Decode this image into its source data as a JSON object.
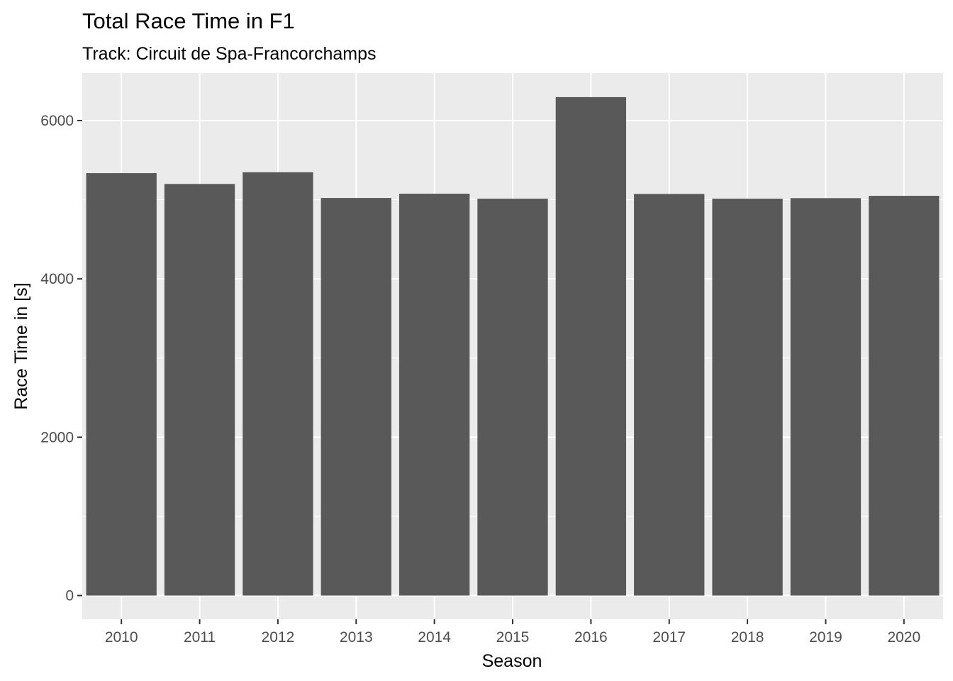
{
  "chart_data": {
    "type": "bar",
    "title": "Total Race Time in F1",
    "subtitle": "Track: Circuit de Spa-Francorchamps",
    "xlabel": "Season",
    "ylabel": "Race Time in [s]",
    "categories": [
      "2010",
      "2011",
      "2012",
      "2013",
      "2014",
      "2015",
      "2016",
      "2017",
      "2018",
      "2019",
      "2020"
    ],
    "values": [
      5336,
      5199,
      5347,
      5022,
      5076,
      5013,
      6296,
      5073,
      5013,
      5020,
      5049
    ],
    "ylim": [
      -300,
      6600
    ],
    "yticks": [
      0,
      2000,
      4000,
      6000
    ],
    "grid": true,
    "legend": "none",
    "colors": {
      "bar": "#595959",
      "panel": "#ebebeb",
      "grid": "#ffffff",
      "tick_text": "#4d4d4d",
      "tick_mark": "#333333"
    }
  }
}
